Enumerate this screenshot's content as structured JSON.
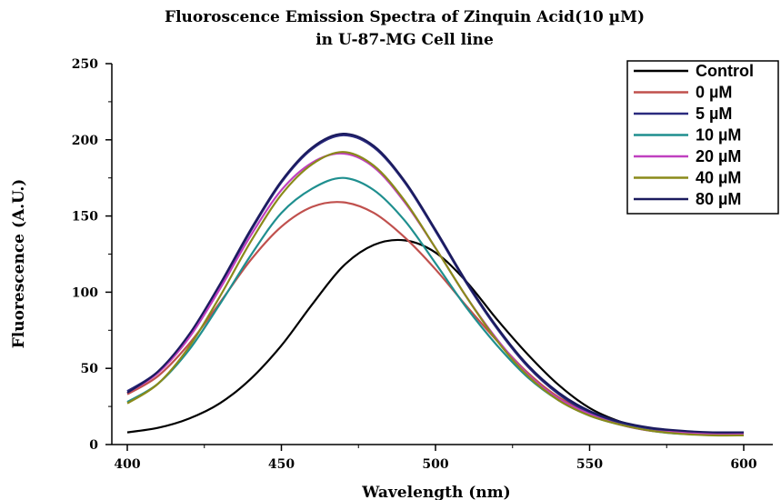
{
  "chart_data": {
    "type": "line",
    "title": "Fluoroscence Emission Spectra of Zinquin Acid(10 µM)",
    "subtitle": "in U-87-MG Cell line",
    "xlabel": "Wavelength (nm)",
    "ylabel": "Fluorescence (A.U.)",
    "xlim": [
      400,
      600
    ],
    "ylim": [
      0,
      250
    ],
    "x_ticks": [
      400,
      450,
      500,
      550,
      600
    ],
    "y_ticks": [
      0,
      50,
      100,
      150,
      200,
      250
    ],
    "legend_position": "top-right",
    "grid": false,
    "x": [
      400,
      410,
      420,
      430,
      440,
      450,
      460,
      470,
      480,
      490,
      500,
      510,
      520,
      530,
      540,
      550,
      560,
      570,
      580,
      590,
      600
    ],
    "series": [
      {
        "name": "Control",
        "color": "#000000",
        "values": [
          8,
          11,
          17,
          27,
          43,
          65,
          92,
          117,
          131,
          134,
          126,
          107,
          82,
          59,
          39,
          24,
          15,
          10,
          8,
          7,
          7
        ]
      },
      {
        "name": "0 µM",
        "color": "#c0504d",
        "values": [
          33,
          45,
          66,
          93,
          121,
          143,
          156,
          159,
          152,
          136,
          115,
          91,
          68,
          47,
          31,
          21,
          14,
          10,
          8,
          7,
          7
        ]
      },
      {
        "name": "5 µM",
        "color": "#2a2a7e",
        "values": [
          35,
          48,
          72,
          104,
          140,
          172,
          194,
          203,
          195,
          172,
          140,
          106,
          76,
          51,
          33,
          21,
          14,
          10,
          8,
          8,
          8
        ]
      },
      {
        "name": "10 µM",
        "color": "#1f8f8f",
        "values": [
          28,
          40,
          62,
          92,
          124,
          152,
          168,
          175,
          167,
          147,
          119,
          90,
          65,
          44,
          29,
          19,
          13,
          9,
          7,
          7,
          6
        ]
      },
      {
        "name": "20 µM",
        "color": "#c040c0",
        "values": [
          34,
          47,
          70,
          102,
          137,
          167,
          185,
          191,
          182,
          159,
          129,
          97,
          69,
          46,
          30,
          20,
          13,
          9,
          8,
          7,
          7
        ]
      },
      {
        "name": "40 µM",
        "color": "#8a8a1a",
        "values": [
          27,
          40,
          64,
          97,
          133,
          164,
          184,
          192,
          183,
          160,
          129,
          97,
          68,
          45,
          29,
          19,
          13,
          9,
          7,
          6,
          6
        ]
      },
      {
        "name": "80 µM",
        "color": "#1b1b5e",
        "values": [
          34,
          48,
          72,
          105,
          141,
          173,
          195,
          204,
          196,
          173,
          141,
          107,
          77,
          52,
          34,
          22,
          15,
          11,
          9,
          8,
          8
        ]
      }
    ]
  }
}
